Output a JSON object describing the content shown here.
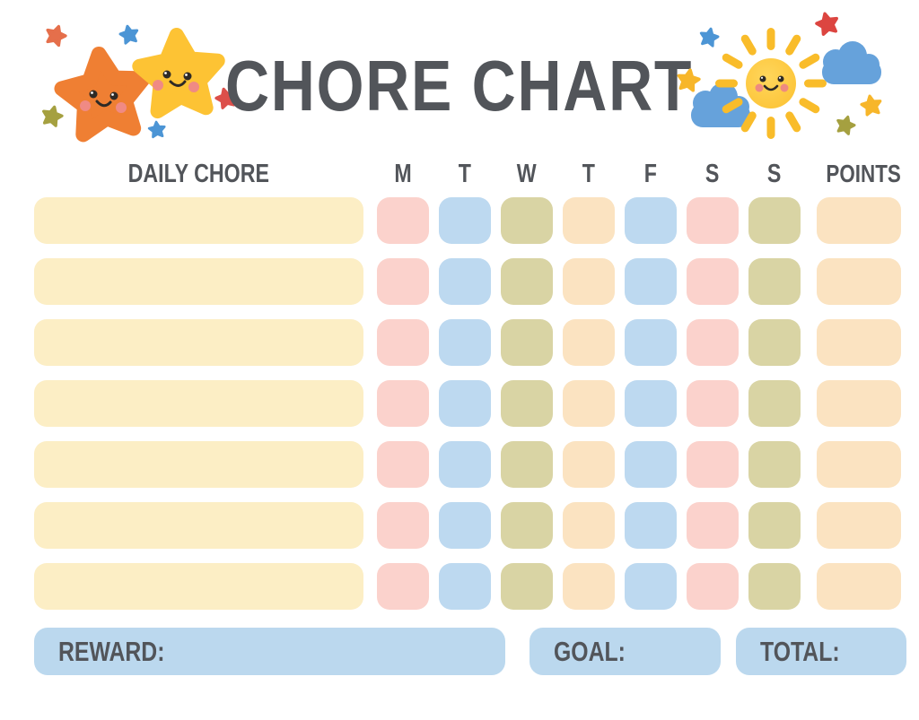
{
  "title": "CHORE CHART",
  "decorations": {
    "left": "two-smiling-stars-with-sparkle-stars",
    "right": "smiling-sun-with-clouds-and-sparkle-stars"
  },
  "palette": {
    "cream": "#FCEEC5",
    "pink": "#FBD2CC",
    "blue": "#BDD9F0",
    "olive": "#D9D4A4",
    "peach": "#FBE3C1",
    "footer_blue": "#BBD8EE",
    "text": "#52555A"
  },
  "table": {
    "chore_header": "DAILY CHORE",
    "day_headers": [
      "M",
      "T",
      "W",
      "T",
      "F",
      "S",
      "S"
    ],
    "points_header": "POINTS",
    "day_colors": [
      "pink",
      "blue",
      "olive",
      "peach",
      "blue",
      "pink",
      "olive"
    ],
    "points_color": "peach",
    "chore_bar_color": "cream",
    "rows": [
      {
        "chore": "",
        "points": ""
      },
      {
        "chore": "",
        "points": ""
      },
      {
        "chore": "",
        "points": ""
      },
      {
        "chore": "",
        "points": ""
      },
      {
        "chore": "",
        "points": ""
      },
      {
        "chore": "",
        "points": ""
      },
      {
        "chore": "",
        "points": ""
      }
    ]
  },
  "footer": {
    "reward_label": "REWARD:",
    "goal_label": "GOAL:",
    "total_label": "TOTAL:"
  }
}
